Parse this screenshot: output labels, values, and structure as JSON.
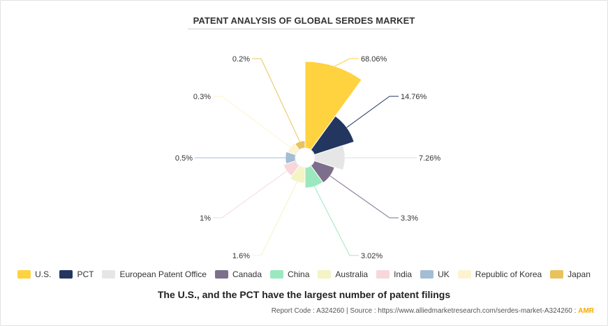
{
  "chart_data": {
    "type": "pie",
    "variant": "nightingale-rose",
    "title": "PATENT ANALYSIS OF GLOBAL SERDES MARKET",
    "subtitle": "The U.S., and the PCT have the largest number of patent filings",
    "slices": [
      {
        "name": "U.S.",
        "value": 68.06,
        "label": "68.06%",
        "color": "#ffd23f"
      },
      {
        "name": "PCT",
        "value": 14.76,
        "label": "14.76%",
        "color": "#233660"
      },
      {
        "name": "European Patent Office",
        "value": 7.26,
        "label": "7.26%",
        "color": "#e6e6e6"
      },
      {
        "name": "Canada",
        "value": 3.3,
        "label": "3.3%",
        "color": "#7d6e8c"
      },
      {
        "name": "China",
        "value": 3.02,
        "label": "3.02%",
        "color": "#9be8bf"
      },
      {
        "name": "Australia",
        "value": 1.6,
        "label": "1.6%",
        "color": "#f4f4c4"
      },
      {
        "name": "India",
        "value": 1.0,
        "label": "1%",
        "color": "#f8d7da"
      },
      {
        "name": "UK",
        "value": 0.5,
        "label": "0.5%",
        "color": "#a3bdd4"
      },
      {
        "name": "Republic of Korea",
        "value": 0.3,
        "label": "0.3%",
        "color": "#fdf3d0"
      },
      {
        "name": "Japan",
        "value": 0.2,
        "label": "0.2%",
        "color": "#e8c35b"
      }
    ]
  },
  "footer": {
    "report_code": "Report Code : A324260",
    "separator": "|",
    "source": "Source : https://www.alliedmarketresearch.com/serdes-market-A324260 :",
    "brand": "AMR"
  }
}
